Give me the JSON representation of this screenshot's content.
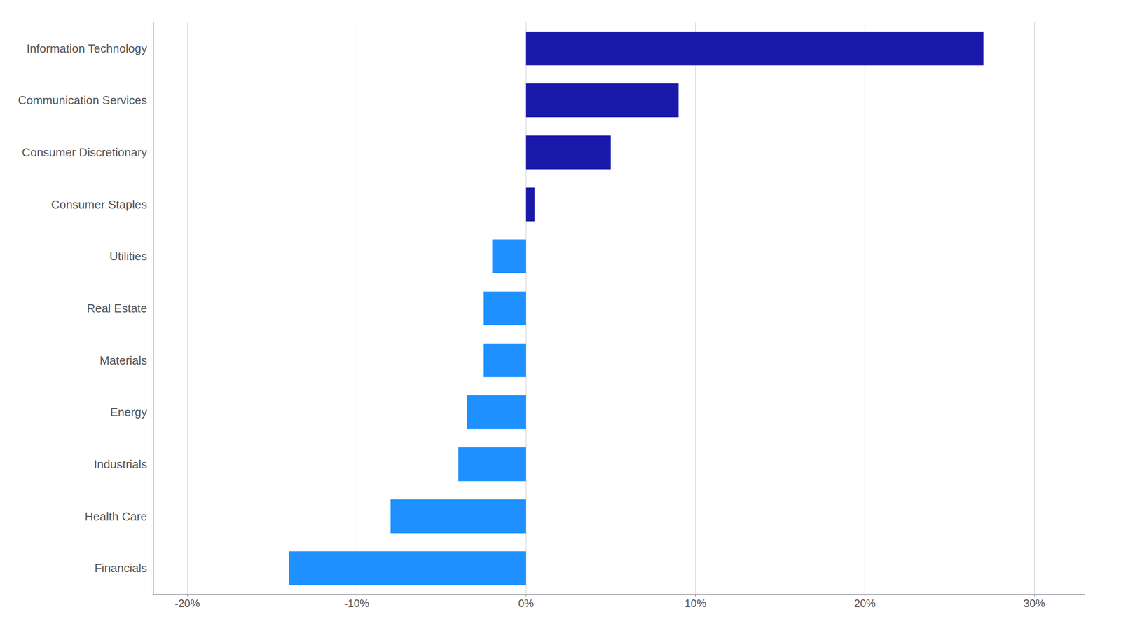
{
  "chart_data": {
    "type": "bar",
    "orientation": "horizontal",
    "categories": [
      "Information Technology",
      "Communication Services",
      "Consumer Discretionary",
      "Consumer Staples",
      "Utilities",
      "Real Estate",
      "Materials",
      "Energy",
      "Industrials",
      "Health Care",
      "Financials"
    ],
    "values": [
      27.0,
      9.0,
      5.0,
      0.5,
      -2.0,
      -2.5,
      -2.5,
      -3.5,
      -4.0,
      -8.0,
      -14.0
    ],
    "colors": [
      "#1a1aaa",
      "#1a1aaa",
      "#1a1aaa",
      "#1a1aaa",
      "#1e90ff",
      "#1e90ff",
      "#1e90ff",
      "#1e90ff",
      "#1e90ff",
      "#1e90ff",
      "#1e90ff"
    ],
    "xlim": [
      -22,
      33
    ],
    "xticks": [
      {
        "value": -20,
        "label": "-20%"
      },
      {
        "value": -10,
        "label": "-10%"
      },
      {
        "value": 0,
        "label": "0%"
      },
      {
        "value": 10,
        "label": "10%"
      },
      {
        "value": 20,
        "label": "20%"
      },
      {
        "value": 30,
        "label": "30%"
      }
    ],
    "grid": true
  }
}
